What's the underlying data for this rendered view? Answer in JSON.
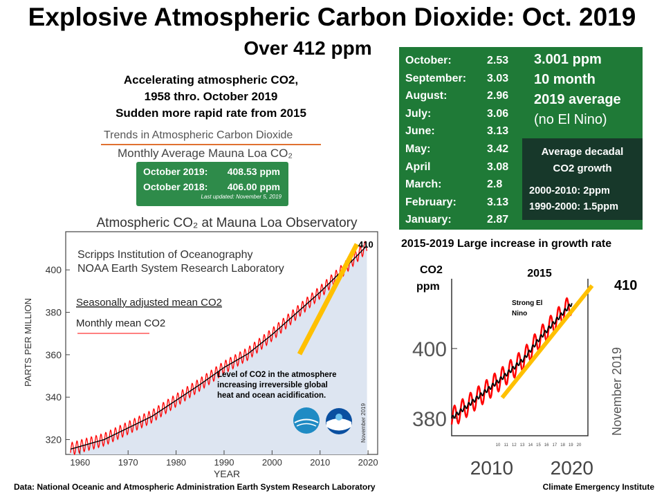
{
  "title": "Explosive Atmospheric Carbon Dioxide: Oct. 2019",
  "subtitle": "Over 412 ppm",
  "intro_lines": [
    "Accelerating atmospheric CO2,",
    "1958 thro. October 2019",
    "Sudden more rapid rate from 2015"
  ],
  "trend_header": {
    "line1": "Trends in Atmospheric Carbon Dioxide",
    "line2": "Monthly Average Mauna Loa CO₂"
  },
  "mauna_loa_box": {
    "rows": [
      {
        "label": "October 2019:",
        "value": "408.53 ppm"
      },
      {
        "label": "October 2018:",
        "value": "406.00 ppm"
      }
    ],
    "updated": "Last updated: November 5, 2019",
    "color": "#2e8b4a"
  },
  "monthly_growth": [
    {
      "month": "October:",
      "value": "2.53"
    },
    {
      "month": "September:",
      "value": "3.03"
    },
    {
      "month": "August:",
      "value": "2.96"
    },
    {
      "month": "July:",
      "value": "3.06"
    },
    {
      "month": "June:",
      "value": "3.13"
    },
    {
      "month": "May:",
      "value": "3.42"
    },
    {
      "month": "April",
      "value": "3.08"
    },
    {
      "month": "March:",
      "value": "2.8"
    },
    {
      "month": "February:",
      "value": "3.13"
    },
    {
      "month": "January:",
      "value": "2.87"
    }
  ],
  "average_note": [
    "3.001 ppm",
    "10 month",
    "2019 average",
    "(no El Nino)"
  ],
  "decadal_box": {
    "heading": [
      "Average decadal",
      "CO2 growth"
    ],
    "lines": [
      "2000-2010: 2ppm",
      "1990-2000: 1.5ppm"
    ]
  },
  "growth_label": "2015-2019 Large increase in growth rate",
  "footer_left": "Data: National Oceanic and Atmospheric Administration Earth System Research Laboratory",
  "footer_right": "Climate Emergency Institute",
  "colors": {
    "green_box": "#1f7a37",
    "dark_box": "#17382a",
    "monthly_line": "#ff0000",
    "seasonal_line": "#000000",
    "fill": "#dde5f1",
    "trend_bar": "#ffc000"
  },
  "chart_data": [
    {
      "type": "line",
      "title": "Atmospheric CO₂ at Mauna Loa Observatory",
      "xlabel": "YEAR",
      "ylabel": "PARTS PER MILLION",
      "xlim": [
        1957,
        2022
      ],
      "ylim": [
        313,
        418
      ],
      "x_ticks": [
        1960,
        1970,
        1980,
        1990,
        2000,
        2010,
        2020
      ],
      "y_ticks": [
        320,
        340,
        360,
        380,
        400
      ],
      "institutions": [
        "Scripps Institution of Oceanography",
        "NOAA Earth System Research Laboratory"
      ],
      "series": [
        {
          "name": "Seasonally adjusted mean CO2",
          "x": [
            1958,
            1965,
            1970,
            1975,
            1980,
            1985,
            1990,
            1995,
            2000,
            2005,
            2010,
            2015,
            2019.8
          ],
          "values": [
            315.5,
            320,
            325.5,
            331,
            338.5,
            346,
            354,
            360.5,
            369.5,
            379.5,
            389.5,
            400.5,
            411.5
          ]
        },
        {
          "name": "Monthly mean CO2",
          "seasonal_amplitude_ppm": 3
        }
      ],
      "annotations": {
        "end_value": "410",
        "note": "Level of CO2 in the atmosphere increasing irreversible global heat and ocean acidification.",
        "date_stamp": "November 2019"
      },
      "grid": false,
      "legend": "left"
    },
    {
      "type": "line",
      "title": "2015",
      "ylabel": "CO2 ppm",
      "xlim": [
        2005,
        2022
      ],
      "ylim": [
        375,
        420
      ],
      "x_tick_labels": [
        "2010",
        "2020"
      ],
      "y_tick_labels": [
        "400",
        "380"
      ],
      "minor_x_ticks": [
        "10",
        "11",
        "12",
        "13",
        "14",
        "15",
        "16",
        "17",
        "18",
        "19",
        "20"
      ],
      "series": [
        {
          "name": "",
          "x": [
            2005,
            2008,
            2011,
            2014,
            2016,
            2018,
            2020
          ],
          "values": [
            380,
            385.5,
            391,
            397,
            403,
            408,
            413
          ]
        }
      ],
      "annotations": {
        "event": "Strong El Nino",
        "end_value": "410",
        "date_stamp": "November 2019"
      },
      "grid": false
    }
  ]
}
